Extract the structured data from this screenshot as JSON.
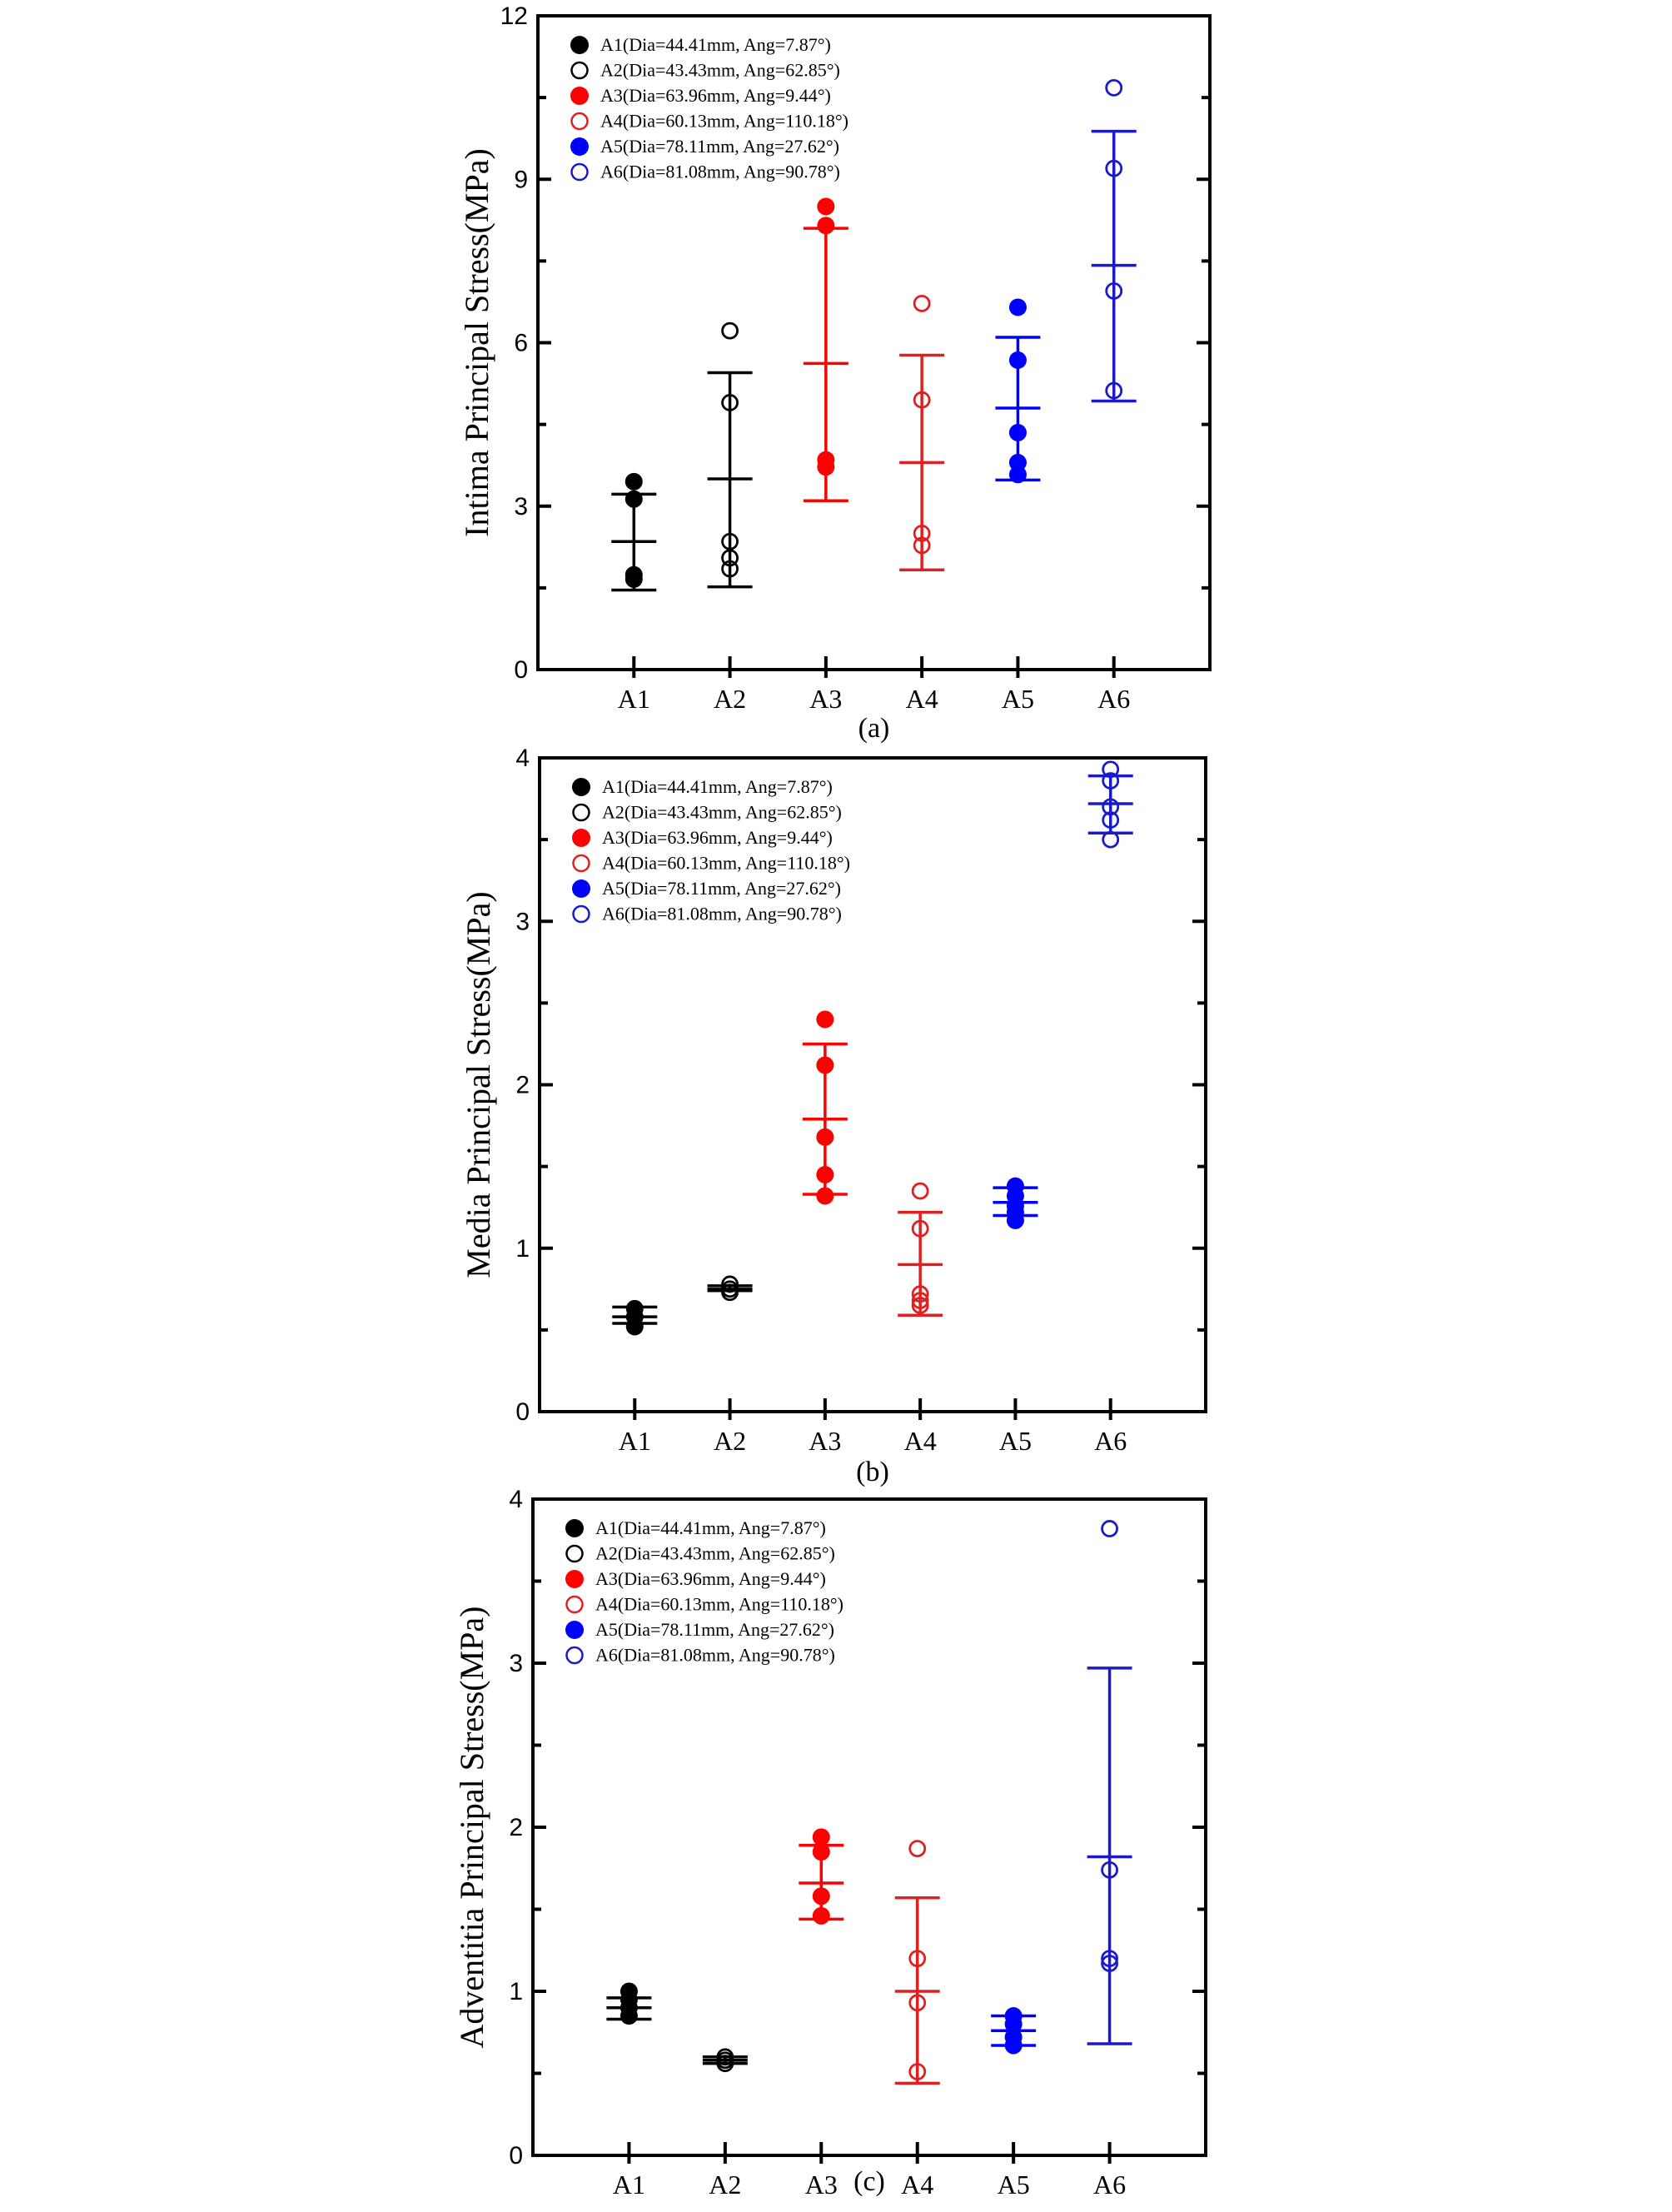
{
  "chart_data": [
    {
      "type": "scatter",
      "panel_label": "(a)",
      "ylabel": "Intima Principal Stress(MPa)",
      "ylim": [
        0,
        12
      ],
      "yticks": [
        0,
        3,
        6,
        9,
        12
      ],
      "categories": [
        "A1",
        "A2",
        "A3",
        "A4",
        "A5",
        "A6"
      ],
      "grid": false,
      "legend_placement": "top-left",
      "series": [
        {
          "name": "A1(Dia=44.41mm, Ang=7.87°)",
          "category": "A1",
          "color": "#000000",
          "filled": true,
          "points": [
            3.45,
            3.13,
            1.74,
            1.66
          ],
          "mean": 2.35,
          "error": [
            1.46,
            3.22
          ]
        },
        {
          "name": "A2(Dia=43.43mm, Ang=62.85°)",
          "category": "A2",
          "color": "#000000",
          "filled": false,
          "points": [
            6.22,
            4.9,
            2.35,
            2.05,
            1.85
          ],
          "mean": 3.5,
          "error": [
            1.52,
            5.45
          ]
        },
        {
          "name": "A3(Dia=63.96mm, Ang=9.44°)",
          "category": "A3",
          "color": "#ff0000",
          "filled": true,
          "points": [
            8.5,
            8.15,
            3.85,
            3.72
          ],
          "mean": 5.62,
          "error": [
            3.1,
            8.1
          ]
        },
        {
          "name": "A4(Dia=60.13mm, Ang=110.18°)",
          "category": "A4",
          "color": "#e02020",
          "filled": false,
          "points": [
            6.72,
            4.95,
            2.5,
            2.28
          ],
          "mean": 3.8,
          "error": [
            1.83,
            5.77
          ]
        },
        {
          "name": "A5(Dia=78.11mm, Ang=27.62°)",
          "category": "A5",
          "color": "#0000ff",
          "filled": true,
          "points": [
            6.65,
            5.68,
            4.35,
            3.8,
            3.58
          ],
          "mean": 4.8,
          "error": [
            3.48,
            6.1
          ]
        },
        {
          "name": "A6(Dia=81.08mm, Ang=90.78°)",
          "category": "A6",
          "color": "#1a1acc",
          "filled": false,
          "points": [
            10.68,
            9.2,
            6.95,
            5.12
          ],
          "mean": 7.42,
          "error": [
            4.93,
            9.88
          ]
        }
      ]
    },
    {
      "type": "scatter",
      "panel_label": "(b)",
      "ylabel": "Media Principal Stress(MPa)",
      "ylim": [
        0,
        4
      ],
      "yticks": [
        0,
        1,
        2,
        3,
        4
      ],
      "categories": [
        "A1",
        "A2",
        "A3",
        "A4",
        "A5",
        "A6"
      ],
      "grid": false,
      "legend_placement": "top-left",
      "series": [
        {
          "name": "A1(Dia=44.41mm, Ang=7.87°)",
          "category": "A1",
          "color": "#000000",
          "filled": true,
          "points": [
            0.63,
            0.58,
            0.52
          ],
          "mean": 0.58,
          "error": [
            0.54,
            0.64
          ]
        },
        {
          "name": "A2(Dia=43.43mm, Ang=62.85°)",
          "category": "A2",
          "color": "#000000",
          "filled": false,
          "points": [
            0.78,
            0.75,
            0.73
          ],
          "mean": 0.75,
          "error": [
            0.74,
            0.77
          ]
        },
        {
          "name": "A3(Dia=63.96mm, Ang=9.44°)",
          "category": "A3",
          "color": "#ff0000",
          "filled": true,
          "points": [
            2.4,
            2.12,
            1.68,
            1.45,
            1.32
          ],
          "mean": 1.79,
          "error": [
            1.33,
            2.25
          ]
        },
        {
          "name": "A4(Dia=60.13mm, Ang=110.18°)",
          "category": "A4",
          "color": "#e02020",
          "filled": false,
          "points": [
            1.35,
            1.12,
            0.72,
            0.68,
            0.65
          ],
          "mean": 0.9,
          "error": [
            0.59,
            1.22
          ]
        },
        {
          "name": "A5(Dia=78.11mm, Ang=27.62°)",
          "category": "A5",
          "color": "#0000ff",
          "filled": true,
          "points": [
            1.38,
            1.32,
            1.26,
            1.22,
            1.17
          ],
          "mean": 1.28,
          "error": [
            1.2,
            1.37
          ]
        },
        {
          "name": "A6(Dia=81.08mm, Ang=90.78°)",
          "category": "A6",
          "color": "#1a1acc",
          "filled": false,
          "points": [
            3.93,
            3.86,
            3.7,
            3.62,
            3.5
          ],
          "mean": 3.72,
          "error": [
            3.54,
            3.89
          ]
        }
      ]
    },
    {
      "type": "scatter",
      "panel_label": "(c)",
      "ylabel": "Adventitia Principal Stress(MPa)",
      "ylim": [
        0,
        4
      ],
      "yticks": [
        0,
        1,
        2,
        3,
        4
      ],
      "categories": [
        "A1",
        "A2",
        "A3",
        "A4",
        "A5",
        "A6"
      ],
      "grid": false,
      "legend_placement": "top-left",
      "series": [
        {
          "name": "A1(Dia=44.41mm, Ang=7.87°)",
          "category": "A1",
          "color": "#000000",
          "filled": true,
          "points": [
            1.0,
            0.95,
            0.9,
            0.85
          ],
          "mean": 0.9,
          "error": [
            0.83,
            0.96
          ]
        },
        {
          "name": "A2(Dia=43.43mm, Ang=62.85°)",
          "category": "A2",
          "color": "#000000",
          "filled": false,
          "points": [
            0.6,
            0.58,
            0.56
          ],
          "mean": 0.58,
          "error": [
            0.56,
            0.6
          ]
        },
        {
          "name": "A3(Dia=63.96mm, Ang=9.44°)",
          "category": "A3",
          "color": "#ff0000",
          "filled": true,
          "points": [
            1.94,
            1.85,
            1.58,
            1.46
          ],
          "mean": 1.66,
          "error": [
            1.44,
            1.89
          ]
        },
        {
          "name": "A4(Dia=60.13mm, Ang=110.18°)",
          "category": "A4",
          "color": "#e02020",
          "filled": false,
          "points": [
            1.87,
            1.2,
            0.93,
            0.51
          ],
          "mean": 1.0,
          "error": [
            0.44,
            1.57
          ]
        },
        {
          "name": "A5(Dia=78.11mm, Ang=27.62°)",
          "category": "A5",
          "color": "#0000ff",
          "filled": true,
          "points": [
            0.85,
            0.8,
            0.72,
            0.67
          ],
          "mean": 0.76,
          "error": [
            0.67,
            0.85
          ]
        },
        {
          "name": "A6(Dia=81.08mm, Ang=90.78°)",
          "category": "A6",
          "color": "#1a1acc",
          "filled": false,
          "points": [
            3.82,
            1.74,
            1.2,
            1.17
          ],
          "mean": 1.82,
          "error": [
            0.68,
            2.97
          ]
        }
      ]
    }
  ]
}
